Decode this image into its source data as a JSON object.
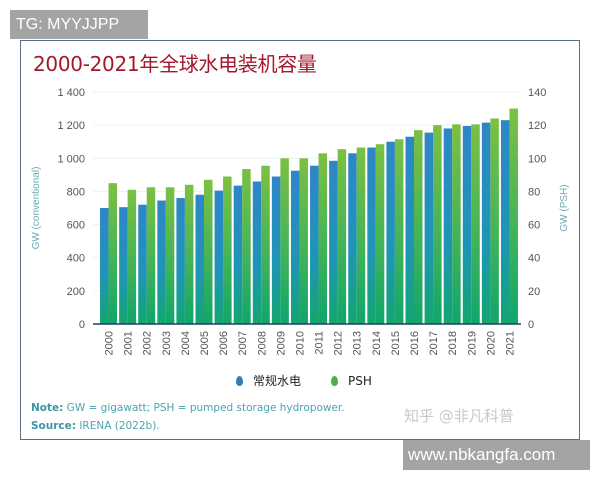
{
  "watermarks": {
    "top": "TG: MYYJJPP",
    "bottom": "www.nbkangfa.com",
    "zhihu": "知乎 @非凡科普"
  },
  "legend": [
    {
      "label": "常规水电",
      "color": "#2a7fc0",
      "icon": "droplet-icon"
    },
    {
      "label": "PSH",
      "color": "#5cb85c",
      "icon": "droplet-icon"
    }
  ],
  "note": {
    "label": "Note:",
    "text": " GW = gigawatt; PSH = pumped storage hydropower."
  },
  "source": {
    "label": "Source:",
    "text": " IRENA (2022b)."
  },
  "chart_data": {
    "type": "bar",
    "title": "2000-2021年全球水电装机容量",
    "xlabel": "",
    "ylabel": "GW (conventional)",
    "y2label": "GW (PSH)",
    "ylim": [
      0,
      1400
    ],
    "y2lim": [
      0,
      140
    ],
    "yticks": [
      "0",
      "200",
      "400",
      "600",
      "800",
      "1 000",
      "1 200",
      "1 400"
    ],
    "y2ticks": [
      "0",
      "20",
      "40",
      "60",
      "80",
      "100",
      "120",
      "140"
    ],
    "grid": true,
    "legend_position": "bottom",
    "categories": [
      "2000",
      "2001",
      "2002",
      "2003",
      "2004",
      "2005",
      "2006",
      "2007",
      "2008",
      "2009",
      "2010",
      "2011",
      "2012",
      "2013",
      "2014",
      "2015",
      "2016",
      "2017",
      "2018",
      "2019",
      "2020",
      "2021"
    ],
    "series": [
      {
        "name": "常规水电",
        "axis": "left",
        "color": "#2a7fc0",
        "values": [
          700,
          705,
          720,
          745,
          760,
          780,
          805,
          835,
          860,
          890,
          925,
          955,
          985,
          1030,
          1065,
          1100,
          1130,
          1155,
          1180,
          1195,
          1215,
          1230
        ]
      },
      {
        "name": "PSH",
        "axis": "right",
        "color": "#6abf4b",
        "values": [
          85,
          81,
          82.5,
          82.5,
          84,
          87,
          89,
          93.5,
          95.5,
          100,
          100,
          103,
          105.5,
          106.5,
          108.5,
          111.5,
          117,
          120,
          120.5,
          120.5,
          124,
          130
        ]
      }
    ]
  }
}
